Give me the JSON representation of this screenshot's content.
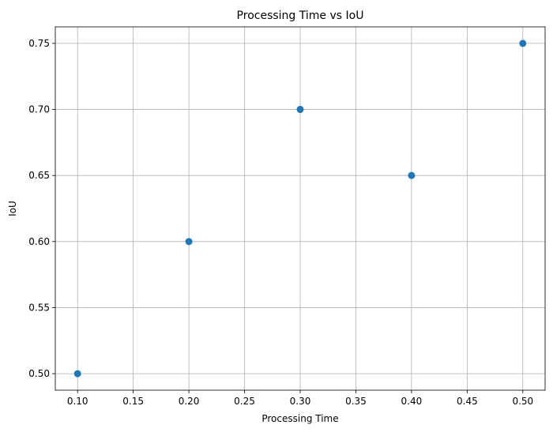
{
  "chart_data": {
    "type": "scatter",
    "title": "Processing Time vs IoU",
    "xlabel": "Processing Time",
    "ylabel": "IoU",
    "xlim": [
      0.08,
      0.52
    ],
    "ylim": [
      0.4875,
      0.7625
    ],
    "x_ticks": [
      0.1,
      0.15,
      0.2,
      0.25,
      0.3,
      0.35,
      0.4,
      0.45,
      0.5
    ],
    "x_tick_labels": [
      "0.10",
      "0.15",
      "0.20",
      "0.25",
      "0.30",
      "0.35",
      "0.40",
      "0.45",
      "0.50"
    ],
    "y_ticks": [
      0.5,
      0.55,
      0.6,
      0.65,
      0.7,
      0.75
    ],
    "y_tick_labels": [
      "0.50",
      "0.55",
      "0.60",
      "0.65",
      "0.70",
      "0.75"
    ],
    "grid": true,
    "point_color": "#1f77b4",
    "series": [
      {
        "x": [
          0.1,
          0.2,
          0.3,
          0.4,
          0.5
        ],
        "y": [
          0.5,
          0.6,
          0.7,
          0.65,
          0.75
        ]
      }
    ]
  }
}
